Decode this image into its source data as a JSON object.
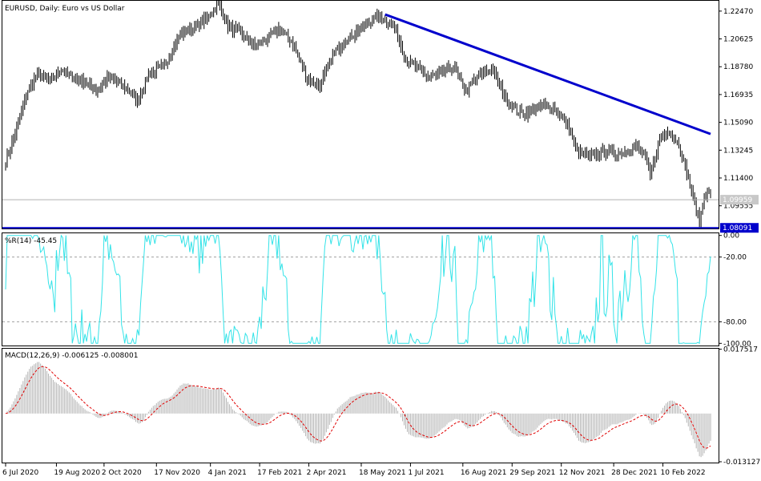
{
  "window": {
    "symbol_label": "EURUSD, Daily:  Euro vs US Dollar"
  },
  "colors": {
    "candles": "#000000",
    "trendline": "#0000cc",
    "williams": "#33e3e8",
    "macd_hist": "#b4b4b4",
    "macd_signal": "#e00000",
    "price_tag_bg": "#0000cc",
    "current_tag_bg": "#c8c8c8"
  },
  "price_panel": {
    "ticks": [
      "1.22470",
      "1.20625",
      "1.18780",
      "1.16935",
      "1.15090",
      "1.13245",
      "1.11400",
      "1.09555"
    ],
    "tick_values": [
      1.2247,
      1.20625,
      1.1878,
      1.16935,
      1.1509,
      1.13245,
      1.114,
      1.09555
    ],
    "ylim": [
      1.0805,
      1.231
    ],
    "current_price": "1.09959",
    "current_price_value": 1.09959,
    "support_label": "1.08091",
    "support_value": 1.08091
  },
  "williams_panel": {
    "label": "%R(14) -45.45",
    "ticks": [
      "0.00",
      "-20.00",
      "-80.00",
      "-100.00"
    ],
    "tick_values": [
      0,
      -20,
      -80,
      -100
    ],
    "ylim": [
      -102,
      2
    ]
  },
  "macd_panel": {
    "label": "MACD(12,26,9) -0.006125 -0.008001",
    "ticks": [
      "0.017517",
      "-0.013127"
    ],
    "tick_values": [
      0.017517,
      -0.013127
    ],
    "ylim": [
      -0.01335,
      0.01765
    ]
  },
  "time_axis": {
    "labels": [
      "6 Jul 2020",
      "19 Aug 2020",
      "2 Oct 2020",
      "17 Nov 2020",
      "4 Jan 2021",
      "17 Feb 2021",
      "2 Apr 2021",
      "18 May 2021",
      "1 Jul 2021",
      "16 Aug 2021",
      "29 Sep 2021",
      "12 Nov 2021",
      "28 Dec 2021",
      "10 Feb 2022"
    ],
    "label_bar_index": [
      0,
      32,
      62,
      95,
      129,
      160,
      191,
      224,
      255,
      288,
      319,
      350,
      383,
      414
    ]
  },
  "chart_data": [
    {
      "type": "candlestick",
      "title": "EURUSD, Daily: Euro vs US Dollar",
      "x": "trading days from 6 Jul 2020 to Mar 2022 (approx. 444 bars)",
      "anchors": [
        [
          0,
          1.125
        ],
        [
          8,
          1.15
        ],
        [
          14,
          1.172
        ],
        [
          20,
          1.183
        ],
        [
          28,
          1.178
        ],
        [
          35,
          1.186
        ],
        [
          42,
          1.181
        ],
        [
          50,
          1.177
        ],
        [
          58,
          1.172
        ],
        [
          64,
          1.18
        ],
        [
          70,
          1.178
        ],
        [
          78,
          1.172
        ],
        [
          83,
          1.165
        ],
        [
          90,
          1.183
        ],
        [
          100,
          1.188
        ],
        [
          110,
          1.21
        ],
        [
          118,
          1.213
        ],
        [
          126,
          1.219
        ],
        [
          134,
          1.23
        ],
        [
          140,
          1.215
        ],
        [
          148,
          1.21
        ],
        [
          156,
          1.202
        ],
        [
          163,
          1.205
        ],
        [
          172,
          1.213
        ],
        [
          180,
          1.205
        ],
        [
          190,
          1.18
        ],
        [
          198,
          1.175
        ],
        [
          206,
          1.196
        ],
        [
          214,
          1.205
        ],
        [
          222,
          1.212
        ],
        [
          228,
          1.216
        ],
        [
          234,
          1.222
        ],
        [
          240,
          1.218
        ],
        [
          246,
          1.212
        ],
        [
          252,
          1.192
        ],
        [
          258,
          1.188
        ],
        [
          266,
          1.181
        ],
        [
          274,
          1.183
        ],
        [
          282,
          1.188
        ],
        [
          290,
          1.172
        ],
        [
          298,
          1.182
        ],
        [
          306,
          1.187
        ],
        [
          314,
          1.169
        ],
        [
          322,
          1.158
        ],
        [
          330,
          1.157
        ],
        [
          338,
          1.162
        ],
        [
          346,
          1.16
        ],
        [
          354,
          1.15
        ],
        [
          360,
          1.131
        ],
        [
          368,
          1.128
        ],
        [
          376,
          1.132
        ],
        [
          384,
          1.13
        ],
        [
          392,
          1.132
        ],
        [
          398,
          1.135
        ],
        [
          402,
          1.13
        ],
        [
          406,
          1.115
        ],
        [
          412,
          1.14
        ],
        [
          418,
          1.146
        ],
        [
          424,
          1.136
        ],
        [
          430,
          1.114
        ],
        [
          434,
          1.097
        ],
        [
          437,
          1.085
        ],
        [
          440,
          1.102
        ],
        [
          444,
          1.104
        ]
      ],
      "trendline": {
        "from": {
          "bar": 239,
          "price": 1.2225
        },
        "to": {
          "bar": 444,
          "price": 1.1432
        }
      },
      "support_line": 1.08091
    },
    {
      "type": "line",
      "title": "%R(14)",
      "series": [
        {
          "name": "%R(14)",
          "last": -45.45
        }
      ],
      "levels": [
        -20,
        -80
      ],
      "ylim": [
        -100,
        0
      ]
    },
    {
      "type": "bar",
      "title": "MACD(12,26,9)",
      "series": [
        {
          "name": "MACD",
          "last": -0.006125
        },
        {
          "name": "Signal",
          "last": -0.008001
        }
      ],
      "ylim": [
        -0.013127,
        0.017517
      ]
    }
  ]
}
